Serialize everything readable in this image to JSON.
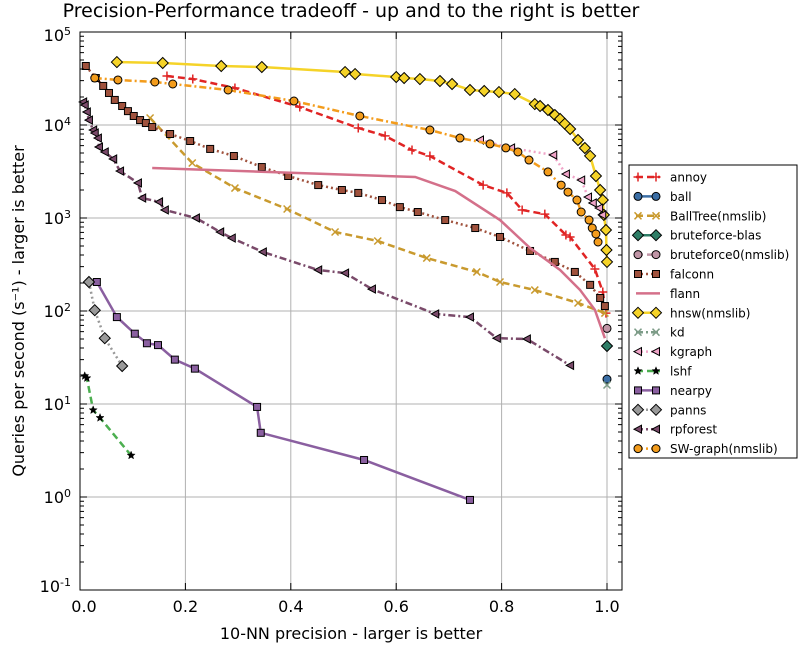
{
  "chart_data": {
    "type": "line",
    "title": "Precision-Performance tradeoff - up and to the right is better",
    "xlabel": "10-NN precision - larger is better",
    "ylabel": "Queries per second (s⁻¹) - larger is better",
    "xlim": [
      0.0,
      1.03
    ],
    "ylim": [
      0.1,
      100000
    ],
    "yscale": "log",
    "grid": true,
    "legend_placement": "right-outside",
    "xticks": [
      "0.0",
      "0.2",
      "0.4",
      "0.6",
      "0.8",
      "1.0"
    ],
    "xtick_values": [
      0,
      0.2,
      0.4,
      0.6,
      0.8,
      1.0
    ],
    "yticks": [
      {
        "base": "10",
        "exp": "-1",
        "value": 0.1
      },
      {
        "base": "10",
        "exp": "0",
        "value": 1
      },
      {
        "base": "10",
        "exp": "1",
        "value": 10
      },
      {
        "base": "10",
        "exp": "2",
        "value": 100
      },
      {
        "base": "10",
        "exp": "3",
        "value": 1000
      },
      {
        "base": "10",
        "exp": "4",
        "value": 10000
      },
      {
        "base": "10",
        "exp": "5",
        "value": 100000
      }
    ],
    "series": [
      {
        "name": "annoy",
        "color": "#e02424",
        "marker": "plus",
        "line": "dashed",
        "x": [
          0.165,
          0.214,
          0.294,
          0.417,
          0.528,
          0.579,
          0.63,
          0.664,
          0.765,
          0.81,
          0.839,
          0.882,
          0.922,
          0.93,
          0.977,
          0.992,
          0.998
        ],
        "y": [
          33600,
          31200,
          25000,
          15600,
          9290,
          7630,
          5380,
          4640,
          2260,
          1860,
          1220,
          1100,
          656,
          625,
          283,
          160,
          95
        ]
      },
      {
        "name": "ball",
        "color": "#3b6ea5",
        "marker": "circle",
        "line": "solid",
        "x": [
          1.0
        ],
        "y": [
          18.5
        ]
      },
      {
        "name": "BallTree(nmslib)",
        "color": "#c99a2e",
        "marker": "x",
        "line": "dashed",
        "x": [
          0.133,
          0.213,
          0.294,
          0.393,
          0.484,
          0.565,
          0.658,
          0.753,
          0.797,
          0.863,
          0.945,
          0.996
        ],
        "y": [
          11900,
          3900,
          2100,
          1250,
          707,
          566,
          371,
          263,
          205,
          168,
          122,
          95
        ]
      },
      {
        "name": "bruteforce-blas",
        "color": "#2e7d66",
        "marker": "diamond",
        "line": "solid",
        "x": [
          1.0
        ],
        "y": [
          42
        ]
      },
      {
        "name": "bruteforce0(nmslib)",
        "color": "#c095a6",
        "marker": "circle",
        "line": "dashed",
        "x": [
          1.0
        ],
        "y": [
          65
        ]
      },
      {
        "name": "falconn",
        "color": "#a0523d",
        "marker": "square",
        "line": "dotted",
        "x": [
          0.011,
          0.03,
          0.044,
          0.055,
          0.066,
          0.08,
          0.091,
          0.102,
          0.114,
          0.125,
          0.137,
          0.171,
          0.209,
          0.247,
          0.292,
          0.345,
          0.395,
          0.452,
          0.497,
          0.528,
          0.573,
          0.607,
          0.641,
          0.693,
          0.75,
          0.797,
          0.854,
          0.901,
          0.939,
          0.968,
          0.987,
          0.996
        ],
        "y": [
          43100,
          32000,
          26300,
          22100,
          18600,
          16000,
          14100,
          12500,
          11300,
          10500,
          9510,
          8000,
          6730,
          5530,
          4640,
          3530,
          2830,
          2260,
          2000,
          1860,
          1560,
          1310,
          1160,
          951,
          780,
          625,
          442,
          337,
          263,
          191,
          138,
          113
        ]
      },
      {
        "name": "flann",
        "color": "#d4708a",
        "marker": "none",
        "line": "solid",
        "x": [
          0.137,
          0.636,
          0.712,
          0.797,
          0.854,
          0.911,
          0.949,
          0.977,
          0.996
        ],
        "y": [
          3450,
          2760,
          1950,
          951,
          476,
          276,
          168,
          103,
          51
        ]
      },
      {
        "name": "hnsw(nmslib)",
        "color": "#f5d328",
        "marker": "diamond",
        "line": "solid",
        "x": [
          0.07,
          0.157,
          0.268,
          0.345,
          0.503,
          0.522,
          0.6,
          0.615,
          0.645,
          0.683,
          0.706,
          0.74,
          0.767,
          0.795,
          0.825,
          0.863,
          0.873,
          0.888,
          0.901,
          0.911,
          0.92,
          0.93,
          0.945,
          0.958,
          0.968,
          0.979,
          0.987,
          0.992,
          0.994,
          0.998,
          0.999,
          1.0
        ],
        "y": [
          47500,
          46400,
          43100,
          42000,
          37100,
          35300,
          32800,
          32000,
          31200,
          29700,
          27600,
          23800,
          23200,
          22600,
          21500,
          16800,
          16000,
          14500,
          12800,
          11600,
          10300,
          9060,
          6900,
          5660,
          4650,
          2830,
          2000,
          1560,
          1080,
          743,
          453,
          337
        ]
      },
      {
        "name": "kd",
        "color": "#7d9c88",
        "marker": "x",
        "line": "dashdot",
        "x": [
          1.0
        ],
        "y": [
          16
        ]
      },
      {
        "name": "kgraph",
        "color": "#f0a4c8",
        "marker": "triangle-left",
        "line": "dotted",
        "x": [
          0.759,
          0.818,
          0.898,
          0.922,
          0.951,
          0.964,
          0.973,
          0.985,
          0.991
        ],
        "y": [
          6900,
          5660,
          4760,
          2970,
          2560,
          1680,
          1450,
          1280,
          1080
        ]
      },
      {
        "name": "lshf",
        "color": "#4caf50",
        "marker": "star",
        "line": "dashed",
        "x": [
          0.009,
          0.013,
          0.025,
          0.038,
          0.097
        ],
        "y": [
          20,
          19,
          8.6,
          7.1,
          2.8
        ]
      },
      {
        "name": "nearpy",
        "color": "#8a5fa0",
        "marker": "square",
        "line": "solid",
        "x": [
          0.032,
          0.07,
          0.104,
          0.127,
          0.148,
          0.18,
          0.218,
          0.336,
          0.343,
          0.539,
          0.74
        ],
        "y": [
          205,
          86,
          57,
          45,
          43,
          30,
          24,
          9.3,
          4.9,
          2.5,
          0.93
        ]
      },
      {
        "name": "panns",
        "color": "#999999",
        "marker": "diamond",
        "line": "dotted",
        "x": [
          0.017,
          0.028,
          0.047,
          0.08
        ],
        "y": [
          205,
          102,
          51,
          25.6
        ]
      },
      {
        "name": "rpforest",
        "color": "#7a4a6a",
        "marker": "triangle-left",
        "line": "dashdot",
        "x": [
          0.006,
          0.009,
          0.013,
          0.017,
          0.025,
          0.028,
          0.034,
          0.036,
          0.047,
          0.063,
          0.076,
          0.11,
          0.118,
          0.15,
          0.161,
          0.22,
          0.266,
          0.288,
          0.347,
          0.452,
          0.503,
          0.554,
          0.674,
          0.74,
          0.791,
          0.848,
          0.93
        ],
        "y": [
          17700,
          16400,
          13800,
          11300,
          8830,
          8200,
          7240,
          5800,
          5130,
          4310,
          3200,
          2380,
          1640,
          1490,
          1220,
          1000,
          707,
          609,
          431,
          276,
          256,
          172,
          93,
          86,
          51,
          50,
          26
        ]
      },
      {
        "name": "SW-graph(nmslib)",
        "color": "#f39c1c",
        "marker": "circle",
        "line": "dashdot",
        "x": [
          0.028,
          0.072,
          0.142,
          0.176,
          0.281,
          0.406,
          0.531,
          0.664,
          0.721,
          0.778,
          0.808,
          0.831,
          0.852,
          0.888,
          0.913,
          0.926,
          0.943,
          0.951,
          0.966,
          0.972,
          0.979,
          0.983
        ],
        "y": [
          32000,
          30500,
          29000,
          27600,
          23800,
          18100,
          12500,
          8830,
          7240,
          6260,
          5670,
          5130,
          4200,
          3130,
          2260,
          1900,
          1560,
          1160,
          951,
          780,
          673,
          552
        ]
      }
    ]
  }
}
